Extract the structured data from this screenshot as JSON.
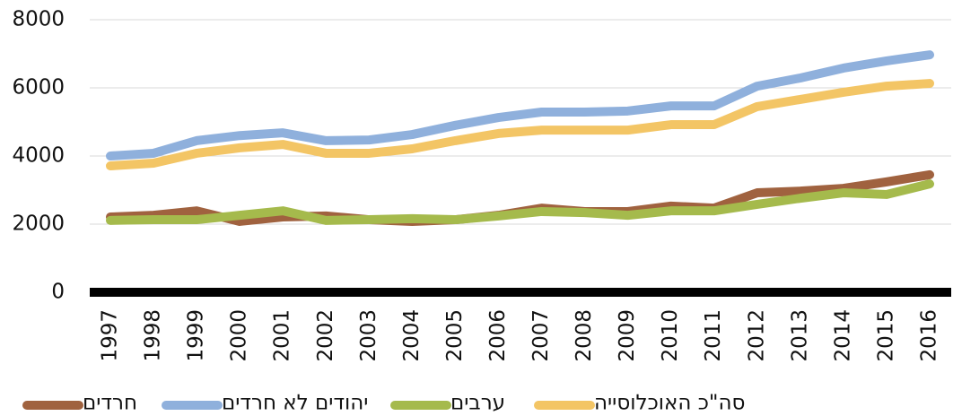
{
  "chart_data": {
    "type": "line",
    "categories": [
      "1997",
      "1998",
      "1999",
      "2000",
      "2001",
      "2002",
      "2003",
      "2004",
      "2005",
      "2006",
      "2007",
      "2008",
      "2009",
      "2010",
      "2011",
      "2012",
      "2013",
      "2014",
      "2015",
      "2016"
    ],
    "series": [
      {
        "name": "חרדים",
        "color": "#a0623f",
        "values": [
          2210,
          2260,
          2390,
          2080,
          2210,
          2240,
          2130,
          2080,
          2130,
          2260,
          2470,
          2370,
          2370,
          2530,
          2470,
          2920,
          2970,
          3050,
          3240,
          3450
        ]
      },
      {
        "name": "יהודים לא חרדים",
        "color": "#8fb0dc",
        "values": [
          4000,
          4080,
          4450,
          4600,
          4680,
          4450,
          4470,
          4630,
          4900,
          5130,
          5290,
          5290,
          5320,
          5470,
          5470,
          6050,
          6290,
          6580,
          6790,
          6970
        ]
      },
      {
        "name": "ערבים",
        "color": "#a5ba4c",
        "values": [
          2110,
          2130,
          2130,
          2260,
          2390,
          2110,
          2130,
          2160,
          2130,
          2240,
          2370,
          2340,
          2260,
          2390,
          2390,
          2580,
          2760,
          2920,
          2870,
          3180
        ]
      },
      {
        "name": "סה\"כ האוכלוסייה",
        "color": "#f3c565",
        "values": [
          3710,
          3790,
          4080,
          4240,
          4340,
          4080,
          4080,
          4210,
          4450,
          4660,
          4760,
          4760,
          4760,
          4920,
          4920,
          5450,
          5660,
          5870,
          6050,
          6130
        ]
      }
    ],
    "ylim": [
      0,
      8000
    ],
    "yticks": [
      0,
      2000,
      4000,
      6000,
      8000
    ],
    "grid": true
  }
}
